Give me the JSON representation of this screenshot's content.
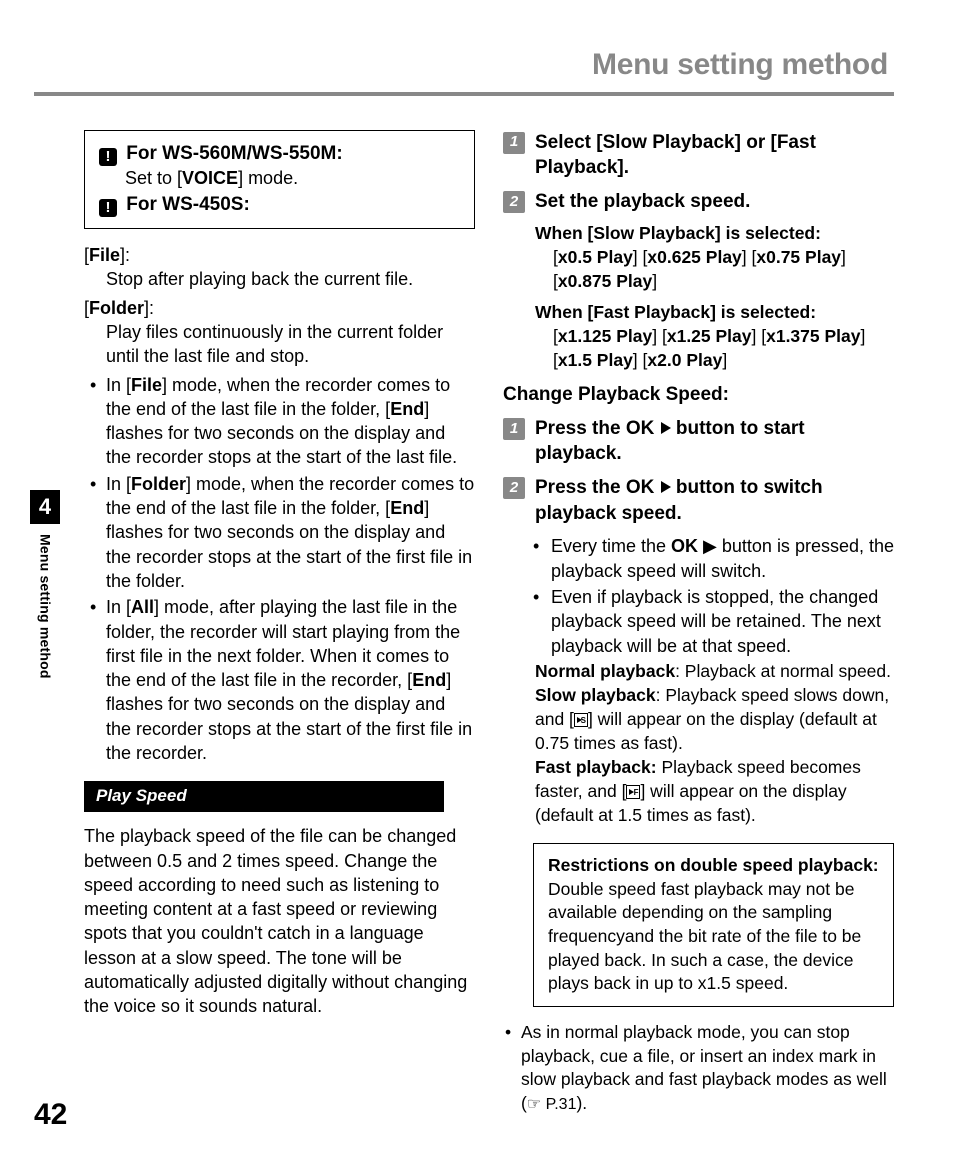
{
  "header": {
    "title": "Menu setting method"
  },
  "sidetab": {
    "chapter": "4",
    "label": "Menu setting method"
  },
  "page_number": "42",
  "left": {
    "model_box": {
      "line1_prefix": "For ",
      "line1_models": "WS-560M/WS-550M:",
      "line1_sub_pre": "Set to [",
      "line1_sub_mode": "VOICE",
      "line1_sub_post": "] mode.",
      "line2_prefix": "For ",
      "line2_models": "WS-450S:"
    },
    "defs": {
      "file_label": "File",
      "file_body": "Stop after playing back the current file.",
      "folder_label": "Folder",
      "folder_body": "Play files continuously in the current folder until the last file and stop."
    },
    "bullets": [
      "In [<b>File</b>] mode, when the recorder comes to the end of the last file in the folder, [<b>End</b>] flashes for two seconds on the display and the recorder stops at the start of the last file.",
      "In [<b>Folder</b>] mode, when the recorder comes to the end of the last file in the folder, [<b>End</b>] flashes for two seconds on the display and the recorder stops at the start of the first file in the folder.",
      "In [<b>All</b>] mode, after playing the last file in the folder, the recorder will start playing from the first file in the next folder. When it comes to the end of the last file in the recorder, [<b>End</b>] flashes for two seconds on the display and the recorder stops at the start of the first file in the recorder."
    ],
    "section_bar": "Play Speed",
    "para": "The playback speed of the file can be changed between 0.5 and 2 times speed. Change the speed according to need such as listening to meeting content at a fast speed or reviewing spots that you couldn't catch in a language lesson at a slow speed. The tone will be automatically adjusted digitally without changing the voice so it sounds natural."
  },
  "right": {
    "step1": {
      "pre": "Select [",
      "opt1": "Slow Playback",
      "mid": "] or [",
      "opt2": "Fast Playback",
      "post": "]."
    },
    "step2": {
      "text": "Set the playback speed."
    },
    "slow": {
      "lead_pre": "When [",
      "lead_mid": "Slow Playback",
      "lead_post": "] is selected:",
      "opts": "[<b>x0.5 Play</b>] [<b>x0.625 Play</b>] [<b>x0.75 Play</b>] [<b>x0.875 Play</b>]"
    },
    "fast": {
      "lead_pre": "When [",
      "lead_mid": "Fast Playback",
      "lead_post": "] is selected:",
      "opts": "[<b>x1.125 Play</b>] [<b>x1.25 Play</b>] [<b>x1.375 Play</b>] [<b>x1.5 Play</b>] [<b>x2.0 Play</b>]"
    },
    "subhead": "Change Playback Speed:",
    "cstep1_pre": "Press the ",
    "cstep1_btn": "OK",
    "cstep1_post": " button to start playback.",
    "cstep2_pre": "Press the ",
    "cstep2_btn": "OK",
    "cstep2_post": " button to switch playback speed.",
    "cbul": [
      "Every time the <b>OK</b> ▶ button is pressed, the playback speed will switch.",
      "Even if playback is stopped, the changed playback speed will be retained. The next playback will be at that speed."
    ],
    "modes": {
      "normal_l": "Normal playback",
      "normal_t": ":  Playback at normal speed.",
      "slow_l": "Slow playback",
      "slow_t": ": Playback speed slows down, and [",
      "slow_t2": "] will appear on the display (default at 0.75 times as fast).",
      "fast_l": "Fast playback:",
      "fast_t": " Playback speed becomes faster, and [",
      "fast_t2": "] will appear on the display (default at 1.5 times as fast)."
    },
    "note": {
      "title": "Restrictions on double speed playback:",
      "body": "Double speed fast playback may not be available depending on the sampling frequencyand the bit rate of the file to be played back. In such a case, the device plays back in up to x1.5 speed."
    },
    "final": {
      "text_pre": "As in normal playback mode, you can stop playback, cue a file, or insert an index mark in slow playback and fast playback modes as well (",
      "ref": "☞ P.31",
      "text_post": ")."
    }
  }
}
